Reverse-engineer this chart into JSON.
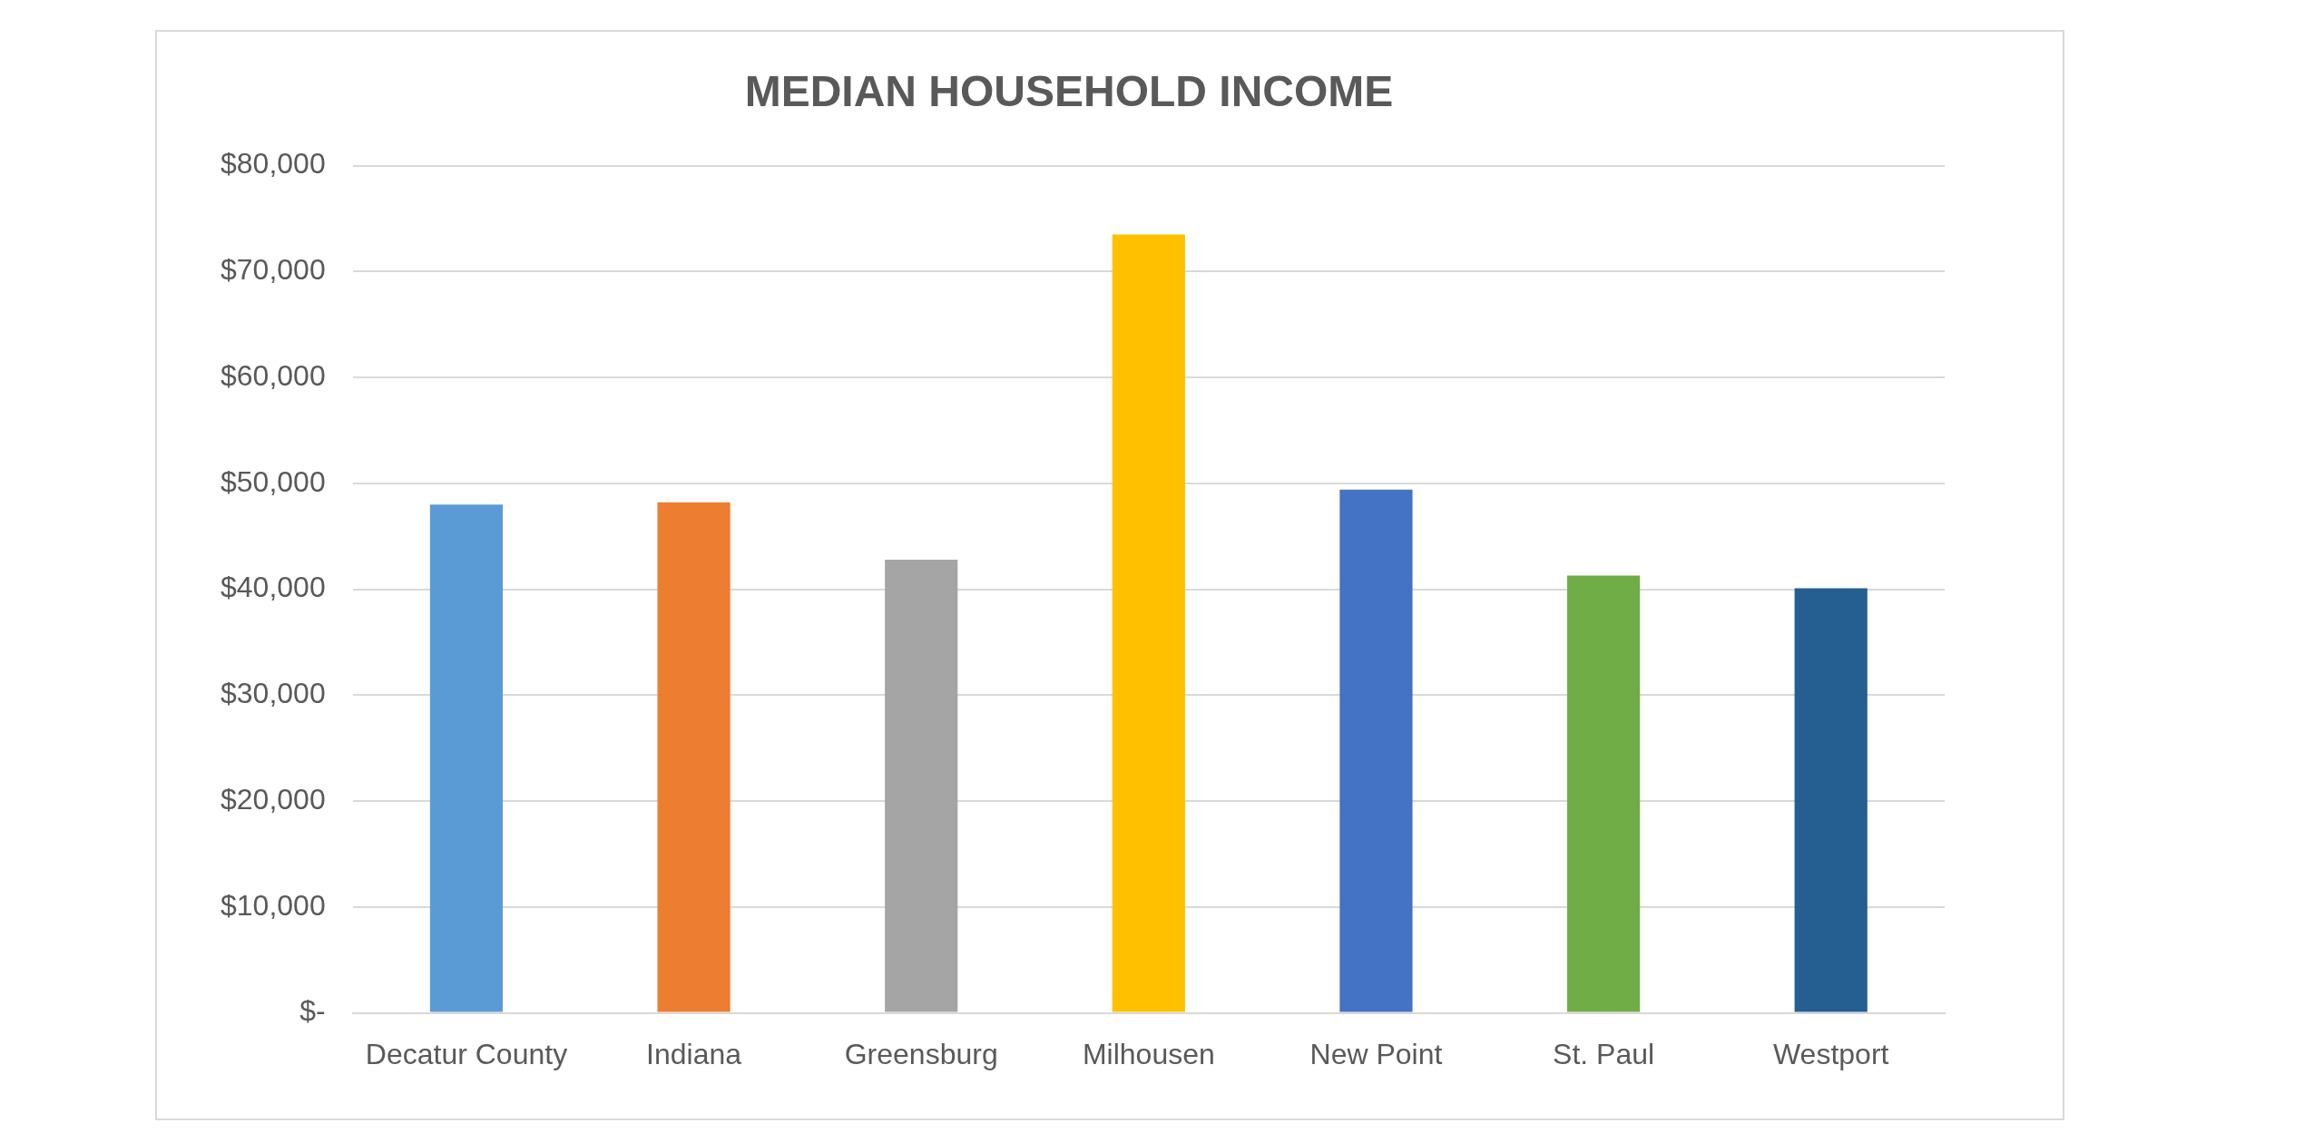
{
  "chart_data": {
    "type": "bar",
    "title": "MEDIAN HOUSEHOLD INCOME",
    "categories": [
      "Decatur County",
      "Indiana",
      "Greensburg",
      "Milhousen",
      "New Point",
      "St. Paul",
      "Westport"
    ],
    "values": [
      48000,
      48200,
      42800,
      73500,
      49400,
      41300,
      40100
    ],
    "colors": [
      "#5b9bd5",
      "#ed7d31",
      "#a5a5a5",
      "#ffc000",
      "#4472c4",
      "#70ad47",
      "#255e91"
    ],
    "ylim": [
      0,
      80000
    ],
    "yticks": [
      {
        "value": 0,
        "label": "$-"
      },
      {
        "value": 10000,
        "label": "$10,000"
      },
      {
        "value": 20000,
        "label": "$20,000"
      },
      {
        "value": 30000,
        "label": "$30,000"
      },
      {
        "value": 40000,
        "label": "$40,000"
      },
      {
        "value": 50000,
        "label": "$50,000"
      },
      {
        "value": 60000,
        "label": "$60,000"
      },
      {
        "value": 70000,
        "label": "$70,000"
      },
      {
        "value": 80000,
        "label": "$80,000"
      }
    ],
    "grid": "y",
    "legend": false
  }
}
